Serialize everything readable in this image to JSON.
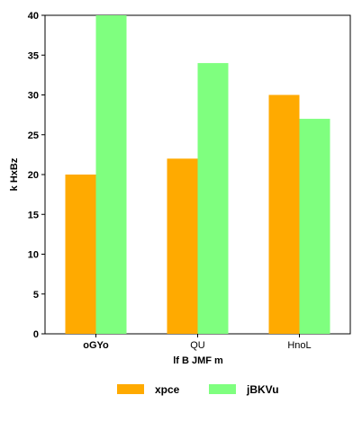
{
  "chart_data": {
    "type": "bar",
    "categories": [
      "oGYo",
      "QU",
      "HnoL"
    ],
    "series": [
      {
        "name": "xpce",
        "values": [
          20,
          22,
          30
        ],
        "color": "#ffaa00"
      },
      {
        "name": "jBKVu",
        "values": [
          40,
          34,
          27
        ],
        "color": "#7fff7f"
      }
    ],
    "title": "",
    "xlabel": "lf B JMF m",
    "ylabel": "k HxBz",
    "ylim": [
      0,
      40
    ],
    "yticks": [
      0,
      5,
      10,
      15,
      20,
      25,
      30,
      35,
      40
    ],
    "grid": false,
    "legend_position": "bottom"
  }
}
